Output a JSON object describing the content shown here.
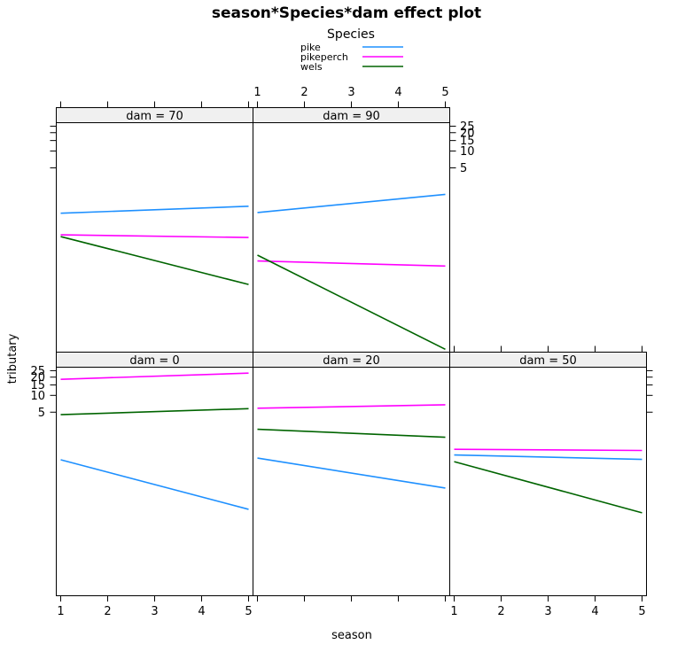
{
  "chart_data": {
    "type": "line",
    "title": "season*Species*dam effect plot",
    "xlabel": "season",
    "ylabel": "tributary",
    "xlim": [
      1,
      5
    ],
    "x_ticks": [
      "1",
      "2",
      "3",
      "4",
      "5"
    ],
    "y_scale": "logit",
    "y_ticks": [
      "5",
      "10",
      "15",
      "20",
      "25"
    ],
    "y_tick_values": [
      5,
      10,
      15,
      20,
      25
    ],
    "legend": {
      "title": "Species",
      "placement": "top-center",
      "entries": [
        {
          "name": "pike",
          "color": "#1e90ff"
        },
        {
          "name": "pikeperch",
          "color": "#ff00ff"
        },
        {
          "name": "wels",
          "color": "#006400"
        }
      ]
    },
    "panels": [
      {
        "label": "dam = 0",
        "row": "bottom",
        "col": 1,
        "series": [
          {
            "name": "pike",
            "x": [
              1,
              5
            ],
            "y": [
              0.63,
              0.07
            ]
          },
          {
            "name": "pikeperch",
            "x": [
              1,
              5
            ],
            "y": [
              18.5,
              23.0
            ]
          },
          {
            "name": "wels",
            "x": [
              1,
              5
            ],
            "y": [
              4.5,
              5.8
            ]
          }
        ]
      },
      {
        "label": "dam = 20",
        "row": "bottom",
        "col": 2,
        "series": [
          {
            "name": "pike",
            "x": [
              1,
              5
            ],
            "y": [
              0.68,
              0.18
            ]
          },
          {
            "name": "pikeperch",
            "x": [
              1,
              5
            ],
            "y": [
              5.9,
              6.8
            ]
          },
          {
            "name": "wels",
            "x": [
              1,
              5
            ],
            "y": [
              2.4,
              1.7
            ]
          }
        ]
      },
      {
        "label": "dam = 50",
        "row": "bottom",
        "col": 3,
        "series": [
          {
            "name": "pike",
            "x": [
              1,
              5
            ],
            "y": [
              0.78,
              0.64
            ]
          },
          {
            "name": "pikeperch",
            "x": [
              1,
              5
            ],
            "y": [
              1.0,
              0.95
            ]
          },
          {
            "name": "wels",
            "x": [
              1,
              5
            ],
            "y": [
              0.58,
              0.06
            ]
          }
        ]
      },
      {
        "label": "dam = 70",
        "row": "top",
        "col": 1,
        "series": [
          {
            "name": "pike",
            "x": [
              1,
              5
            ],
            "y": [
              0.7,
              0.95
            ]
          },
          {
            "name": "pikeperch",
            "x": [
              1,
              5
            ],
            "y": [
              0.27,
              0.24
            ]
          },
          {
            "name": "wels",
            "x": [
              1,
              5
            ],
            "y": [
              0.25,
              0.03
            ]
          }
        ]
      },
      {
        "label": "dam = 90",
        "row": "top",
        "col": 2,
        "series": [
          {
            "name": "pike",
            "x": [
              1,
              5
            ],
            "y": [
              0.72,
              1.6
            ]
          },
          {
            "name": "pikeperch",
            "x": [
              1,
              5
            ],
            "y": [
              0.085,
              0.068
            ]
          },
          {
            "name": "wels",
            "x": [
              1,
              5
            ],
            "y": [
              0.11,
              0.0017
            ]
          }
        ]
      }
    ]
  }
}
